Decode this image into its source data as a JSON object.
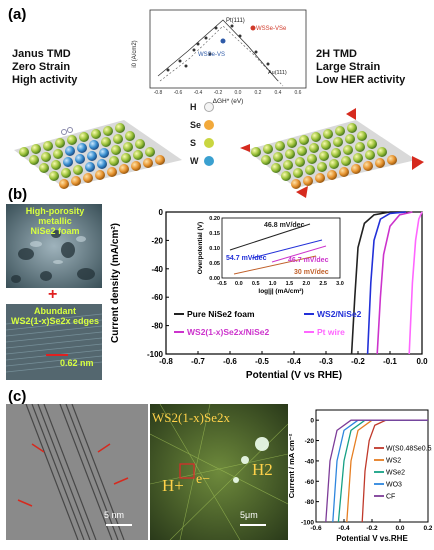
{
  "panel_a": {
    "label": "(a)",
    "left_lines": [
      "Janus TMD",
      "Zero Strain",
      "High activity"
    ],
    "right_lines": [
      "2H TMD",
      "Large Strain",
      "Low HER activity"
    ],
    "legend": [
      {
        "symbol": "H",
        "color": "#ffffff"
      },
      {
        "symbol": "Se",
        "color": "#f2a93b"
      },
      {
        "symbol": "S",
        "color": "#c9d640"
      },
      {
        "symbol": "W",
        "color": "#3aa0d0"
      }
    ],
    "inset": {
      "ylabel": "i0 (A/cm2)",
      "xlabel": "ΔGH* (eV)",
      "labels": {
        "pt": "Pt(111)",
        "wsse_vse": "WSSe-VSe",
        "wsse_vs": "WSSe-VS",
        "au": "Au(111)"
      }
    }
  },
  "panel_b": {
    "label": "(b)",
    "img1_text": [
      "High-porosity metallic",
      "NiSe2 foam"
    ],
    "plus": "+",
    "img2_text": [
      "Abundant",
      "WS2(1-x)Se2x edges"
    ],
    "img2_scale": "0.62 nm",
    "chart_data": {
      "type": "line",
      "xlabel": "Potential (V vs RHE)",
      "ylabel": "Current density (mA/cm²)",
      "xlim": [
        -0.8,
        0.0
      ],
      "ylim": [
        -100,
        0
      ],
      "x_ticks": [
        "-0.8",
        "-0.7",
        "-0.6",
        "-0.5",
        "-0.4",
        "-0.3",
        "-0.2",
        "-0.1",
        "0.0"
      ],
      "y_ticks": [
        "0",
        "-20",
        "-40",
        "-60",
        "-80",
        "-100"
      ],
      "legend": [
        "Pure NiSe2 foam",
        "WS2/NiSe2",
        "WS2(1-x)Se2x/NiSe2",
        "Pt wire"
      ],
      "series": [
        {
          "name": "Pure NiSe2 foam",
          "color": "#222222",
          "points": [
            [
              -0.05,
              0
            ],
            [
              -0.1,
              0
            ],
            [
              -0.15,
              -2
            ],
            [
              -0.18,
              -8
            ],
            [
              -0.2,
              -25
            ],
            [
              -0.21,
              -60
            ],
            [
              -0.22,
              -100
            ]
          ]
        },
        {
          "name": "WS2/NiSe2",
          "color": "#2230d8",
          "points": [
            [
              -0.05,
              0
            ],
            [
              -0.1,
              -1
            ],
            [
              -0.13,
              -5
            ],
            [
              -0.15,
              -20
            ],
            [
              -0.16,
              -50
            ],
            [
              -0.17,
              -100
            ]
          ]
        },
        {
          "name": "WS2(1-x)Se2x/NiSe2",
          "color": "#cc33cc",
          "points": [
            [
              -0.03,
              0
            ],
            [
              -0.07,
              -2
            ],
            [
              -0.1,
              -10
            ],
            [
              -0.12,
              -30
            ],
            [
              -0.13,
              -60
            ],
            [
              -0.14,
              -100
            ]
          ]
        },
        {
          "name": "Pt wire",
          "color": "#ff66ff",
          "points": [
            [
              0,
              0
            ],
            [
              -0.01,
              -5
            ],
            [
              -0.02,
              -20
            ],
            [
              -0.03,
              -50
            ],
            [
              -0.04,
              -100
            ]
          ]
        }
      ],
      "inset": {
        "xlabel": "log|j| (mA/cm²)",
        "ylabel": "Overpotential (V)",
        "x_ticks": [
          "-0.5",
          "0.0",
          "0.5",
          "1.0",
          "1.5",
          "2.0",
          "2.5",
          "3.0"
        ],
        "y_ticks": [
          "0.00",
          "0.05",
          "0.10",
          "0.15",
          "0.20"
        ],
        "annotations": [
          "46.8 mV/dec",
          "46.7 mV/dec",
          "54.7 mV/dec",
          "30 mV/dec"
        ]
      }
    }
  },
  "panel_c": {
    "label": "(c)",
    "tem_scale": "5 nm",
    "sem_scale": "5μm",
    "sem_title": "WS2(1-x)Se2x",
    "h_plus": "H+",
    "e_minus": "e−",
    "h2": "H2",
    "chart_data": {
      "type": "line",
      "xlabel": "Potential V vs.RHE",
      "ylabel": "Current / mA cm⁻²",
      "xlim": [
        -0.6,
        0.2
      ],
      "ylim": [
        -100,
        10
      ],
      "x_ticks": [
        "-0.6",
        "-0.4",
        "-0.2",
        "0.0",
        "0.2"
      ],
      "y_ticks": [
        "0",
        "-20",
        "-40",
        "-60",
        "-80",
        "-100"
      ],
      "legend": [
        "W(S0.48Se0.52)2",
        "WS2",
        "WSe2",
        "WO3",
        "CF"
      ],
      "series": [
        {
          "name": "W(S0.48Se0.52)2",
          "color": "#c0392b",
          "points": [
            [
              0.2,
              0
            ],
            [
              -0.1,
              0
            ],
            [
              -0.18,
              -5
            ],
            [
              -0.22,
              -20
            ],
            [
              -0.25,
              -50
            ],
            [
              -0.27,
              -100
            ]
          ]
        },
        {
          "name": "WS2",
          "color": "#e67e22",
          "points": [
            [
              0.2,
              0
            ],
            [
              -0.2,
              0
            ],
            [
              -0.3,
              -10
            ],
            [
              -0.35,
              -40
            ],
            [
              -0.38,
              -100
            ]
          ]
        },
        {
          "name": "WSe2",
          "color": "#16a085",
          "points": [
            [
              0.2,
              0
            ],
            [
              -0.25,
              0
            ],
            [
              -0.35,
              -10
            ],
            [
              -0.4,
              -40
            ],
            [
              -0.44,
              -100
            ]
          ]
        },
        {
          "name": "WO3",
          "color": "#2e86de",
          "points": [
            [
              0.2,
              0
            ],
            [
              -0.3,
              0
            ],
            [
              -0.4,
              -10
            ],
            [
              -0.45,
              -40
            ],
            [
              -0.48,
              -100
            ]
          ]
        },
        {
          "name": "CF",
          "color": "#7d3c98",
          "points": [
            [
              0.2,
              0
            ],
            [
              -0.35,
              0
            ],
            [
              -0.45,
              -10
            ],
            [
              -0.5,
              -40
            ],
            [
              -0.53,
              -100
            ]
          ]
        }
      ]
    }
  }
}
